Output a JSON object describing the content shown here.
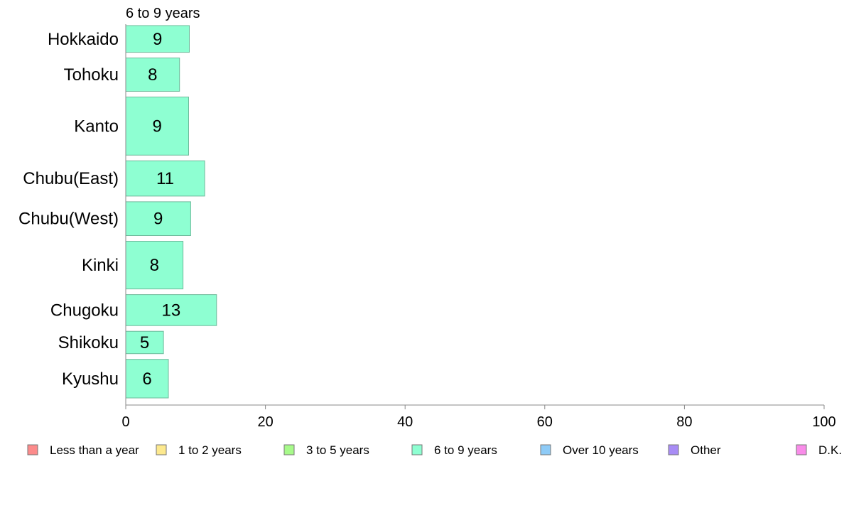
{
  "chart_data": {
    "type": "bar",
    "orientation": "horizontal",
    "title": "",
    "subtitle": "6 to 9 years",
    "xlabel": "",
    "ylabel": "",
    "xlim": [
      0,
      100
    ],
    "x_ticks": [
      0,
      20,
      40,
      60,
      80,
      100
    ],
    "grid": false,
    "legend_position": "bottom",
    "categories": [
      "Hokkaido",
      "Tohoku",
      "Kanto",
      "Chubu(East)",
      "Chubu(West)",
      "Kinki",
      "Chugoku",
      "Shikoku",
      "Kyushu"
    ],
    "category_weights": [
      5.6,
      7.0,
      12.2,
      7.4,
      7.1,
      10.0,
      6.5,
      4.7,
      8.1
    ],
    "series": [
      {
        "name": "6 to 9 years",
        "color": "#8effd2",
        "values": [
          9,
          8,
          9,
          11,
          9,
          8,
          13,
          5,
          6
        ],
        "bar_values": [
          9.1,
          7.7,
          9.0,
          11.3,
          9.3,
          8.2,
          13.0,
          5.4,
          6.1
        ]
      }
    ],
    "legend": [
      {
        "name": "Less than a year",
        "color": "#fc8b8b"
      },
      {
        "name": "1 to 2 years",
        "color": "#fde98e"
      },
      {
        "name": "3 to 5 years",
        "color": "#a7fa8a"
      },
      {
        "name": "6 to 9 years",
        "color": "#8effd2"
      },
      {
        "name": "Over 10 years",
        "color": "#8ecbf7"
      },
      {
        "name": "Other",
        "color": "#a88cf5"
      },
      {
        "name": "D.K.",
        "color": "#f98ce9"
      }
    ]
  },
  "colors": {
    "bar_stroke": "#6fb99b",
    "axis": "#888888",
    "legend_stroke": "#777777"
  }
}
